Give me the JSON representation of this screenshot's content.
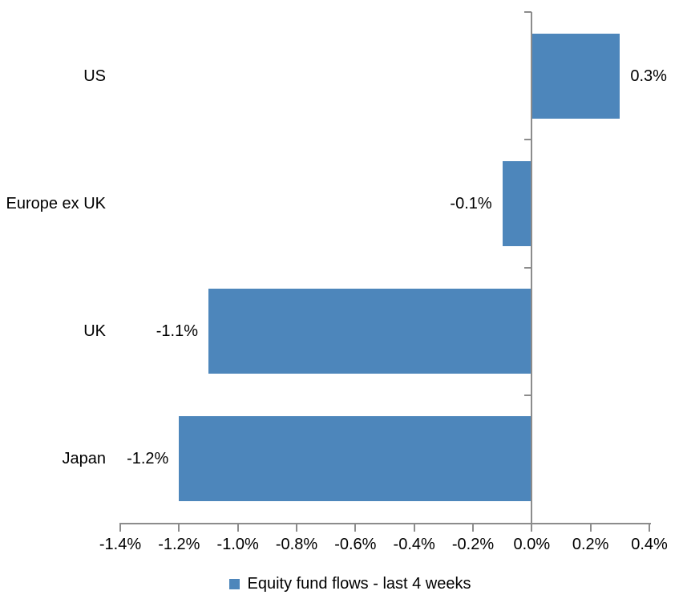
{
  "chart_data": {
    "type": "bar",
    "orientation": "horizontal",
    "title": "",
    "xlabel": "",
    "ylabel": "",
    "categories": [
      "US",
      "Europe ex UK",
      "UK",
      "Japan"
    ],
    "series": [
      {
        "name": "Equity fund flows - last 4 weeks",
        "values": [
          0.3,
          -0.1,
          -1.1,
          -1.2
        ],
        "data_labels": [
          "0.3%",
          "-0.1%",
          "-1.1%",
          "-1.2%"
        ],
        "color": "#4D86BB"
      }
    ],
    "xlim": [
      -1.4,
      0.4
    ],
    "x_tick_step": 0.2,
    "x_tick_labels": [
      "-1.4%",
      "-1.2%",
      "-1.0%",
      "-0.8%",
      "-0.6%",
      "-0.4%",
      "-0.2%",
      "0.0%",
      "0.2%",
      "0.4%"
    ],
    "grid": false,
    "legend_position": "bottom",
    "axis_color": "#8C8C8C",
    "text_color": "#000000",
    "background_color": "#FFFFFF"
  },
  "legend": {
    "label": "Equity fund flows - last 4 weeks",
    "swatch_color": "#4D86BB"
  }
}
